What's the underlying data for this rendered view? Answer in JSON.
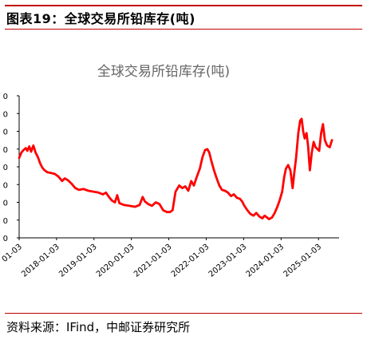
{
  "header": {
    "figure_label": "图表19：全球交易所铅库存(吨)"
  },
  "footer": {
    "source": "资料来源：IFind，中邮证券研究所"
  },
  "chart_data": {
    "type": "line",
    "title": "全球交易所铅库存(吨)",
    "xlabel": "",
    "ylabel": "",
    "x_tick_labels": [
      "01-03",
      "2018-01-03",
      "2019-01-03",
      "2020-01-03",
      "2021-01-03",
      "2022-01-03",
      "2023-01-03",
      "2024-01-03",
      "2025-01-03"
    ],
    "y_tick_labels": [
      "0",
      "0",
      "0",
      "0",
      "0",
      "0",
      "0",
      "0",
      "0"
    ],
    "ylim": [
      0,
      8
    ],
    "grid": false,
    "legend": "none",
    "line_color": "#ff0000",
    "series": [
      {
        "values": [
          [
            2017.0,
            4.5
          ],
          [
            2017.06,
            4.8
          ],
          [
            2017.12,
            4.95
          ],
          [
            2017.18,
            5.05
          ],
          [
            2017.22,
            4.9
          ],
          [
            2017.27,
            5.15
          ],
          [
            2017.32,
            4.85
          ],
          [
            2017.38,
            5.2
          ],
          [
            2017.44,
            4.8
          ],
          [
            2017.5,
            4.55
          ],
          [
            2017.56,
            4.2
          ],
          [
            2017.62,
            3.95
          ],
          [
            2017.68,
            3.8
          ],
          [
            2017.75,
            3.7
          ],
          [
            2017.85,
            3.65
          ],
          [
            2017.95,
            3.6
          ],
          [
            2018.05,
            3.45
          ],
          [
            2018.15,
            3.2
          ],
          [
            2018.22,
            3.35
          ],
          [
            2018.3,
            3.25
          ],
          [
            2018.4,
            3.05
          ],
          [
            2018.5,
            2.8
          ],
          [
            2018.6,
            2.7
          ],
          [
            2018.72,
            2.75
          ],
          [
            2018.85,
            2.65
          ],
          [
            2019.0,
            2.6
          ],
          [
            2019.12,
            2.55
          ],
          [
            2019.24,
            2.45
          ],
          [
            2019.32,
            2.55
          ],
          [
            2019.4,
            2.3
          ],
          [
            2019.48,
            2.1
          ],
          [
            2019.56,
            2.0
          ],
          [
            2019.62,
            2.4
          ],
          [
            2019.68,
            1.95
          ],
          [
            2019.8,
            1.85
          ],
          [
            2019.95,
            1.8
          ],
          [
            2020.1,
            1.75
          ],
          [
            2020.22,
            1.85
          ],
          [
            2020.3,
            2.3
          ],
          [
            2020.36,
            2.05
          ],
          [
            2020.45,
            1.9
          ],
          [
            2020.55,
            1.8
          ],
          [
            2020.65,
            2.0
          ],
          [
            2020.75,
            1.9
          ],
          [
            2020.85,
            1.55
          ],
          [
            2020.95,
            1.45
          ],
          [
            2021.03,
            1.45
          ],
          [
            2021.1,
            1.55
          ],
          [
            2021.18,
            2.6
          ],
          [
            2021.28,
            2.95
          ],
          [
            2021.36,
            2.8
          ],
          [
            2021.44,
            2.9
          ],
          [
            2021.52,
            2.65
          ],
          [
            2021.6,
            3.2
          ],
          [
            2021.67,
            2.95
          ],
          [
            2021.75,
            3.45
          ],
          [
            2021.83,
            3.9
          ],
          [
            2021.9,
            4.55
          ],
          [
            2021.97,
            4.95
          ],
          [
            2022.03,
            5.0
          ],
          [
            2022.08,
            4.8
          ],
          [
            2022.14,
            4.3
          ],
          [
            2022.2,
            3.85
          ],
          [
            2022.27,
            3.4
          ],
          [
            2022.35,
            2.95
          ],
          [
            2022.42,
            2.7
          ],
          [
            2022.5,
            2.65
          ],
          [
            2022.58,
            2.55
          ],
          [
            2022.66,
            2.35
          ],
          [
            2022.74,
            2.45
          ],
          [
            2022.82,
            2.25
          ],
          [
            2022.9,
            2.2
          ],
          [
            2022.96,
            2.05
          ],
          [
            2023.02,
            1.8
          ],
          [
            2023.1,
            1.55
          ],
          [
            2023.18,
            1.35
          ],
          [
            2023.26,
            1.25
          ],
          [
            2023.34,
            1.4
          ],
          [
            2023.42,
            1.2
          ],
          [
            2023.5,
            1.1
          ],
          [
            2023.56,
            1.25
          ],
          [
            2023.62,
            1.15
          ],
          [
            2023.68,
            1.05
          ],
          [
            2023.76,
            1.15
          ],
          [
            2023.83,
            1.4
          ],
          [
            2023.9,
            1.75
          ],
          [
            2023.96,
            2.1
          ],
          [
            2024.03,
            2.6
          ],
          [
            2024.08,
            3.4
          ],
          [
            2024.13,
            3.9
          ],
          [
            2024.19,
            4.1
          ],
          [
            2024.25,
            3.8
          ],
          [
            2024.31,
            2.8
          ],
          [
            2024.35,
            3.6
          ],
          [
            2024.4,
            4.5
          ],
          [
            2024.46,
            5.9
          ],
          [
            2024.51,
            6.6
          ],
          [
            2024.55,
            6.7
          ],
          [
            2024.59,
            6.0
          ],
          [
            2024.63,
            5.6
          ],
          [
            2024.68,
            5.9
          ],
          [
            2024.72,
            5.2
          ],
          [
            2024.77,
            3.8
          ],
          [
            2024.82,
            4.8
          ],
          [
            2024.87,
            5.4
          ],
          [
            2024.92,
            5.1
          ],
          [
            2024.97,
            5.0
          ],
          [
            2025.02,
            4.9
          ],
          [
            2025.07,
            5.9
          ],
          [
            2025.12,
            6.4
          ],
          [
            2025.17,
            5.5
          ],
          [
            2025.23,
            5.2
          ],
          [
            2025.3,
            5.1
          ],
          [
            2025.36,
            5.5
          ]
        ]
      }
    ]
  }
}
